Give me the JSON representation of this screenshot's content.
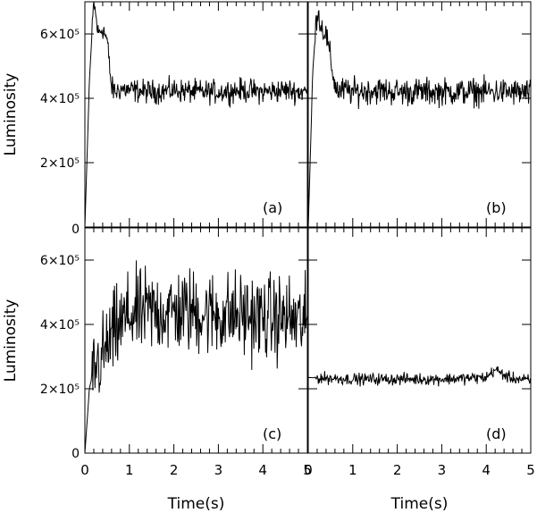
{
  "chart_data": [
    {
      "type": "line",
      "panel_label": "(a)",
      "xlabel": "",
      "ylabel": "Luminosity",
      "xlim": [
        0,
        5
      ],
      "ylim": [
        0,
        700000
      ],
      "x_tick_labels": [],
      "y_tick_labels": [
        "6×10⁵",
        "4×10⁵",
        "2×10⁵"
      ],
      "series": [
        {
          "x": [
            0,
            0.1,
            0.2,
            0.3,
            0.4,
            0.5,
            0.6,
            0.7,
            0.8,
            1,
            1.5,
            2,
            2.5,
            3,
            3.5,
            4,
            4.5,
            5
          ],
          "y": [
            0,
            450000,
            700000,
            600000,
            620000,
            580000,
            430000,
            420000,
            430000,
            425000,
            420000,
            425000,
            420000,
            420000,
            425000,
            420000,
            425000,
            420000
          ],
          "noise_amplitude": 30000
        }
      ]
    },
    {
      "type": "line",
      "panel_label": "(b)",
      "xlabel": "",
      "ylabel": "",
      "xlim": [
        0,
        5
      ],
      "ylim": [
        0,
        700000
      ],
      "x_tick_labels": [],
      "y_tick_labels": [],
      "series": [
        {
          "x": [
            0,
            0.1,
            0.2,
            0.3,
            0.4,
            0.5,
            0.6,
            0.7,
            0.8,
            1,
            1.5,
            2,
            2.5,
            3,
            3.5,
            4,
            4.5,
            5
          ],
          "y": [
            0,
            480000,
            680000,
            620000,
            600000,
            520000,
            440000,
            420000,
            425000,
            420000,
            425000,
            420000,
            420000,
            420000,
            420000,
            420000,
            420000,
            415000
          ],
          "noise_amplitude": 35000
        }
      ]
    },
    {
      "type": "line",
      "panel_label": "(c)",
      "xlabel": "Time(s)",
      "ylabel": "Luminosity",
      "xlim": [
        0,
        5
      ],
      "ylim": [
        0,
        700000
      ],
      "x_tick_labels": [
        "0",
        "1",
        "2",
        "3",
        "4",
        "5"
      ],
      "y_tick_labels": [
        "0",
        "6×10⁵",
        "4×10⁵",
        "2×10⁵",
        "0"
      ],
      "series": [
        {
          "x": [
            0,
            0.1,
            0.2,
            0.3,
            0.4,
            0.5,
            0.7,
            1,
            1.5,
            2,
            2.5,
            3,
            3.5,
            4,
            4.5,
            5
          ],
          "y": [
            0,
            200000,
            260000,
            280000,
            300000,
            330000,
            380000,
            430000,
            440000,
            440000,
            440000,
            430000,
            430000,
            420000,
            420000,
            400000
          ],
          "noise_amplitude": 110000
        }
      ]
    },
    {
      "type": "line",
      "panel_label": "(d)",
      "xlabel": "Time(s)",
      "ylabel": "",
      "xlim": [
        0,
        5
      ],
      "ylim": [
        0,
        700000
      ],
      "x_tick_labels": [
        "0",
        "1",
        "2",
        "3",
        "4",
        "5"
      ],
      "y_tick_labels": [],
      "series": [
        {
          "x": [
            0,
            1,
            2,
            3,
            4,
            4.2,
            4.5,
            5
          ],
          "y": [
            235000,
            230000,
            230000,
            230000,
            235000,
            260000,
            235000,
            225000
          ],
          "noise_amplitude": 15000
        }
      ]
    }
  ]
}
